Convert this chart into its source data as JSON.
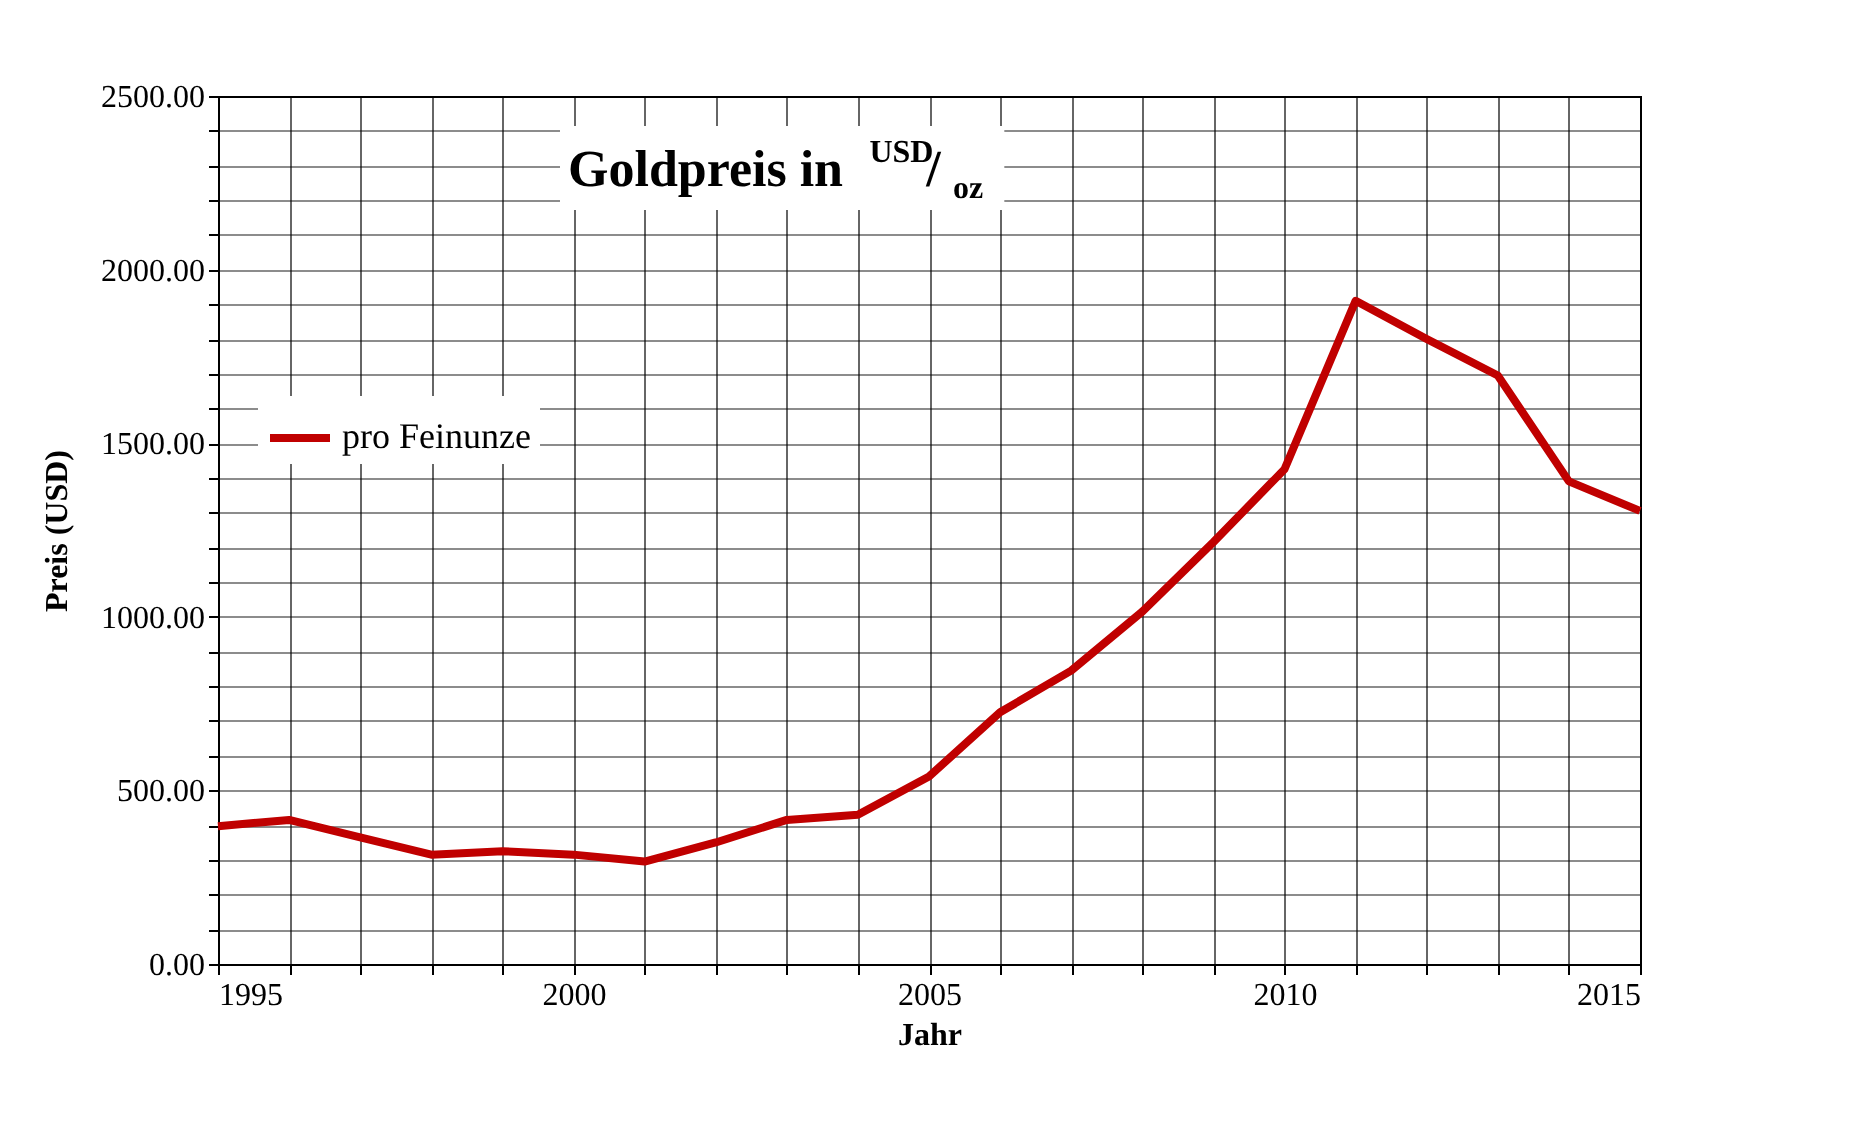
{
  "chart_data": {
    "type": "line",
    "title": "Goldpreis in $^{USD}$/$_{oz}$",
    "xlabel": "Jahr",
    "ylabel": "Preis (USD)",
    "x": [
      1995,
      1996,
      1997,
      1998,
      1999,
      2000,
      2001,
      2002,
      2003,
      2004,
      2005,
      2006,
      2007,
      2008,
      2009,
      2010,
      2011,
      2012,
      2013,
      2014,
      2015
    ],
    "series": [
      {
        "name": "pro Feinunze",
        "color": "#c00000",
        "values": [
          397,
          415,
          365,
          315,
          325,
          315,
          295,
          350,
          415,
          430,
          540,
          725,
          845,
          1015,
          1215,
          1425,
          1910,
          1800,
          1695,
          1390,
          1305
        ]
      }
    ],
    "xlim": [
      1995,
      2015
    ],
    "xticks": [
      1995,
      {
        "value": 1996,
        "label": null
      },
      {
        "value": 1997,
        "label": null
      },
      {
        "value": 1998,
        "label": null
      },
      {
        "value": 1999,
        "label": null
      },
      2000,
      {
        "value": 2001,
        "label": null
      },
      {
        "value": 2002,
        "label": null
      },
      {
        "value": 2003,
        "label": null
      },
      {
        "value": 2004,
        "label": null
      },
      2005,
      {
        "value": 2006,
        "label": null
      },
      {
        "value": 2007,
        "label": null
      },
      {
        "value": 2008,
        "label": null
      },
      {
        "value": 2009,
        "label": null
      },
      2010,
      {
        "value": 2011,
        "label": null
      },
      {
        "value": 2012,
        "label": null
      },
      {
        "value": 2013,
        "label": null
      },
      {
        "value": 2014,
        "label": null
      },
      2015
    ],
    "ylim": [
      0,
      2500
    ],
    "yticks": [
      {
        "value": 0,
        "label": "0.00"
      },
      {
        "value": 100,
        "label": null
      },
      {
        "value": 200,
        "label": null
      },
      {
        "value": 300,
        "label": null
      },
      {
        "value": 400,
        "label": null
      },
      {
        "value": 500,
        "label": "500.00"
      },
      {
        "value": 600,
        "label": null
      },
      {
        "value": 700,
        "label": null
      },
      {
        "value": 800,
        "label": null
      },
      {
        "value": 900,
        "label": null
      },
      {
        "value": 1000,
        "label": "1000.00"
      },
      {
        "value": 1100,
        "label": null
      },
      {
        "value": 1200,
        "label": null
      },
      {
        "value": 1300,
        "label": null
      },
      {
        "value": 1400,
        "label": null
      },
      {
        "value": 1500,
        "label": "1500.00"
      },
      {
        "value": 1600,
        "label": null
      },
      {
        "value": 1700,
        "label": null
      },
      {
        "value": 1800,
        "label": null
      },
      {
        "value": 1900,
        "label": null
      },
      {
        "value": 2000,
        "label": "2000.00"
      },
      {
        "value": 2100,
        "label": null
      },
      {
        "value": 2200,
        "label": null
      },
      {
        "value": 2300,
        "label": null
      },
      {
        "value": 2400,
        "label": null
      },
      {
        "value": 2500,
        "label": "2500.00"
      }
    ],
    "grid": true,
    "legend": "left",
    "marker": "none",
    "line_style": "solid"
  }
}
